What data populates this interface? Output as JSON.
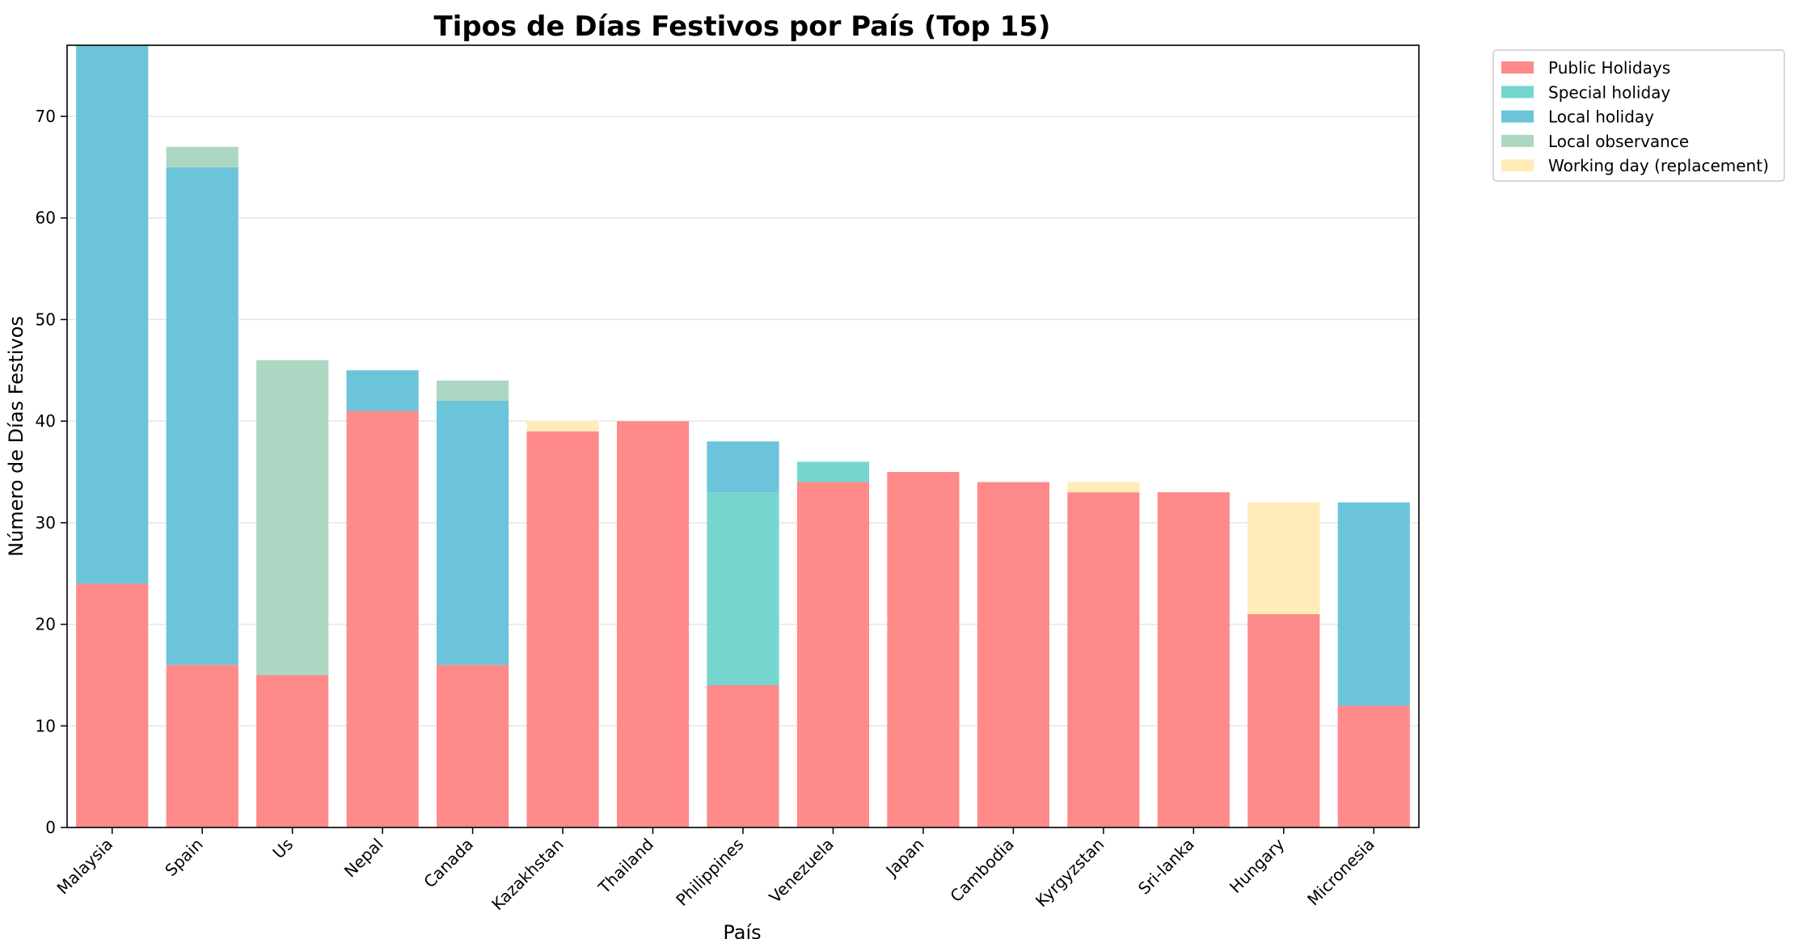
{
  "chart_data": {
    "type": "bar",
    "stacked": true,
    "title": "Tipos de Días Festivos por País (Top 15)",
    "xlabel": "País",
    "ylabel": "Número de Días Festivos",
    "ylim": [
      0,
      77
    ],
    "yticks": [
      0,
      10,
      20,
      30,
      40,
      50,
      60,
      70
    ],
    "grid": "horizontal",
    "legend_position": "outside-top-right",
    "categories": [
      "Malaysia",
      "Spain",
      "Us",
      "Nepal",
      "Canada",
      "Kazakhstan",
      "Thailand",
      "Philippines",
      "Venezuela",
      "Japan",
      "Cambodia",
      "Kyrgyzstan",
      "Sri-lanka",
      "Hungary",
      "Micronesia"
    ],
    "series": [
      {
        "name": "Public Holidays",
        "color": "#ff8a8a",
        "values": [
          24,
          16,
          15,
          41,
          16,
          39,
          40,
          14,
          34,
          35,
          34,
          33,
          33,
          21,
          12
        ]
      },
      {
        "name": "Special holiday",
        "color": "#76d6cf",
        "values": [
          0,
          0,
          0,
          0,
          0,
          0,
          0,
          19,
          2,
          0,
          0,
          0,
          0,
          0,
          0
        ]
      },
      {
        "name": "Local holiday",
        "color": "#6cc4da",
        "values": [
          55,
          49,
          0,
          4,
          26,
          0,
          0,
          5,
          0,
          0,
          0,
          0,
          0,
          0,
          20
        ]
      },
      {
        "name": "Local observance",
        "color": "#acd8c3",
        "values": [
          0,
          2,
          31,
          0,
          2,
          0,
          0,
          0,
          0,
          0,
          0,
          0,
          0,
          0,
          0
        ]
      },
      {
        "name": "Working day (replacement)",
        "color": "#ffecb8",
        "values": [
          0,
          0,
          0,
          0,
          0,
          1,
          0,
          0,
          0,
          0,
          0,
          1,
          0,
          11,
          0
        ]
      }
    ]
  }
}
